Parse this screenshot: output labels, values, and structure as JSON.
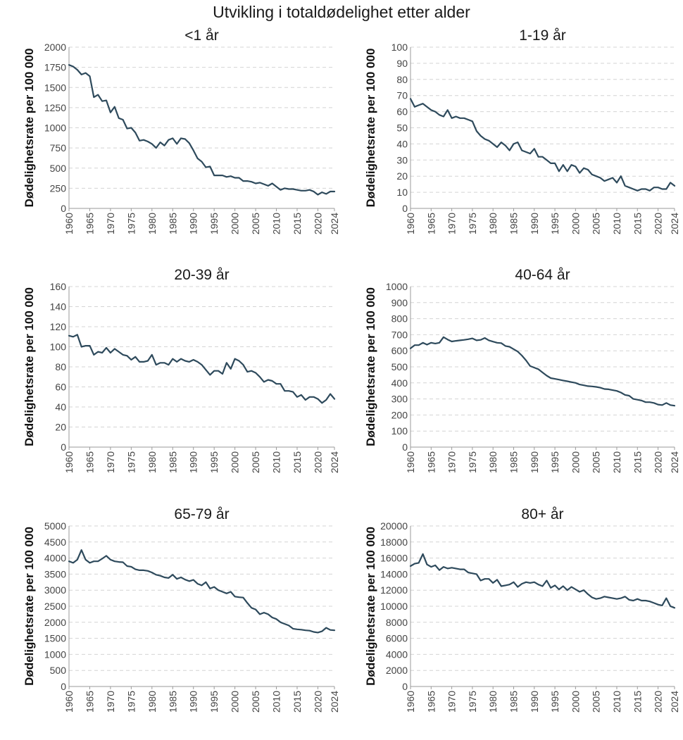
{
  "title": "Utvikling i totaldødelighet etter alder",
  "colors": {
    "line": "#2e4a5c"
  },
  "chart_data": [
    {
      "type": "line",
      "title": "<1 år",
      "xlabel": "",
      "ylabel": "Dødelighetsrate per 100 000",
      "xlim": [
        1960,
        2024
      ],
      "ylim": [
        0,
        2000
      ],
      "yticks": [
        0,
        250,
        500,
        750,
        1000,
        1250,
        1500,
        1750,
        2000
      ],
      "xticks": [
        1960,
        1965,
        1970,
        1975,
        1980,
        1985,
        1990,
        1995,
        2000,
        2005,
        2010,
        2015,
        2020,
        2024
      ],
      "grid": true,
      "x": [
        1960,
        1961,
        1962,
        1963,
        1964,
        1965,
        1966,
        1967,
        1968,
        1969,
        1970,
        1971,
        1972,
        1973,
        1974,
        1975,
        1976,
        1977,
        1978,
        1979,
        1980,
        1981,
        1982,
        1983,
        1984,
        1985,
        1986,
        1987,
        1988,
        1989,
        1990,
        1991,
        1992,
        1993,
        1994,
        1995,
        1996,
        1997,
        1998,
        1999,
        2000,
        2001,
        2002,
        2003,
        2004,
        2005,
        2006,
        2007,
        2008,
        2009,
        2010,
        2011,
        2012,
        2013,
        2014,
        2015,
        2016,
        2017,
        2018,
        2019,
        2020,
        2021,
        2022,
        2023,
        2024
      ],
      "y": [
        1780,
        1760,
        1720,
        1660,
        1680,
        1640,
        1380,
        1410,
        1330,
        1340,
        1190,
        1260,
        1120,
        1100,
        990,
        1000,
        940,
        840,
        850,
        830,
        800,
        750,
        820,
        780,
        850,
        870,
        800,
        870,
        860,
        810,
        720,
        620,
        580,
        510,
        520,
        410,
        410,
        410,
        390,
        400,
        380,
        380,
        340,
        340,
        330,
        310,
        320,
        300,
        280,
        310,
        270,
        230,
        250,
        240,
        240,
        230,
        220,
        220,
        230,
        210,
        170,
        200,
        180,
        210,
        210
      ]
    },
    {
      "type": "line",
      "title": "1-19 år",
      "xlabel": "",
      "ylabel": "Dødelighetsrate per 100 000",
      "xlim": [
        1960,
        2024
      ],
      "ylim": [
        0,
        100
      ],
      "yticks": [
        0,
        10,
        20,
        30,
        40,
        50,
        60,
        70,
        80,
        90,
        100
      ],
      "xticks": [
        1960,
        1965,
        1970,
        1975,
        1980,
        1985,
        1990,
        1995,
        2000,
        2005,
        2010,
        2015,
        2020,
        2024
      ],
      "grid": true,
      "x": [
        1960,
        1961,
        1962,
        1963,
        1964,
        1965,
        1966,
        1967,
        1968,
        1969,
        1970,
        1971,
        1972,
        1973,
        1974,
        1975,
        1976,
        1977,
        1978,
        1979,
        1980,
        1981,
        1982,
        1983,
        1984,
        1985,
        1986,
        1987,
        1988,
        1989,
        1990,
        1991,
        1992,
        1993,
        1994,
        1995,
        1996,
        1997,
        1998,
        1999,
        2000,
        2001,
        2002,
        2003,
        2004,
        2005,
        2006,
        2007,
        2008,
        2009,
        2010,
        2011,
        2012,
        2013,
        2014,
        2015,
        2016,
        2017,
        2018,
        2019,
        2020,
        2021,
        2022,
        2023,
        2024
      ],
      "y": [
        68,
        63,
        64,
        65,
        63,
        61,
        60,
        58,
        57,
        61,
        56,
        57,
        56,
        56,
        55,
        54,
        48,
        45,
        43,
        42,
        40,
        38,
        41,
        39,
        36,
        40,
        41,
        36,
        35,
        34,
        37,
        32,
        32,
        30,
        28,
        28,
        23,
        27,
        23,
        27,
        26,
        22,
        25,
        24,
        21,
        20,
        19,
        17,
        18,
        19,
        16,
        20,
        14,
        13,
        12,
        11,
        12,
        12,
        11,
        13,
        13,
        12,
        12,
        16,
        14
      ]
    },
    {
      "type": "line",
      "title": "20-39 år",
      "xlabel": "",
      "ylabel": "Dødelighetsrate per 100 000",
      "xlim": [
        1960,
        2024
      ],
      "ylim": [
        0,
        160
      ],
      "yticks": [
        0,
        20,
        40,
        60,
        80,
        100,
        120,
        140,
        160
      ],
      "xticks": [
        1960,
        1965,
        1970,
        1975,
        1980,
        1985,
        1990,
        1995,
        2000,
        2005,
        2010,
        2015,
        2020,
        2024
      ],
      "grid": true,
      "x": [
        1960,
        1961,
        1962,
        1963,
        1964,
        1965,
        1966,
        1967,
        1968,
        1969,
        1970,
        1971,
        1972,
        1973,
        1974,
        1975,
        1976,
        1977,
        1978,
        1979,
        1980,
        1981,
        1982,
        1983,
        1984,
        1985,
        1986,
        1987,
        1988,
        1989,
        1990,
        1991,
        1992,
        1993,
        1994,
        1995,
        1996,
        1997,
        1998,
        1999,
        2000,
        2001,
        2002,
        2003,
        2004,
        2005,
        2006,
        2007,
        2008,
        2009,
        2010,
        2011,
        2012,
        2013,
        2014,
        2015,
        2016,
        2017,
        2018,
        2019,
        2020,
        2021,
        2022,
        2023,
        2024
      ],
      "y": [
        111,
        110,
        112,
        100,
        101,
        101,
        92,
        95,
        94,
        99,
        94,
        98,
        95,
        92,
        91,
        87,
        90,
        85,
        85,
        86,
        92,
        82,
        84,
        84,
        82,
        88,
        85,
        88,
        86,
        85,
        87,
        85,
        82,
        77,
        72,
        76,
        76,
        73,
        84,
        78,
        88,
        86,
        82,
        75,
        76,
        74,
        70,
        65,
        67,
        66,
        63,
        63,
        56,
        56,
        55,
        50,
        52,
        47,
        50,
        50,
        48,
        44,
        47,
        53,
        48
      ]
    },
    {
      "type": "line",
      "title": "40-64 år",
      "xlabel": "",
      "ylabel": "Dødelighetsrate per 100 000",
      "xlim": [
        1960,
        2024
      ],
      "ylim": [
        0,
        1000
      ],
      "yticks": [
        0,
        100,
        200,
        300,
        400,
        500,
        600,
        700,
        800,
        900,
        1000
      ],
      "xticks": [
        1960,
        1965,
        1970,
        1975,
        1980,
        1985,
        1990,
        1995,
        2000,
        2005,
        2010,
        2015,
        2020,
        2024
      ],
      "grid": true,
      "x": [
        1960,
        1961,
        1962,
        1963,
        1964,
        1965,
        1966,
        1967,
        1968,
        1969,
        1970,
        1971,
        1972,
        1973,
        1974,
        1975,
        1976,
        1977,
        1978,
        1979,
        1980,
        1981,
        1982,
        1983,
        1984,
        1985,
        1986,
        1987,
        1988,
        1989,
        1990,
        1991,
        1992,
        1993,
        1994,
        1995,
        1996,
        1997,
        1998,
        1999,
        2000,
        2001,
        2002,
        2003,
        2004,
        2005,
        2006,
        2007,
        2008,
        2009,
        2010,
        2011,
        2012,
        2013,
        2014,
        2015,
        2016,
        2017,
        2018,
        2019,
        2020,
        2021,
        2022,
        2023,
        2024
      ],
      "y": [
        615,
        635,
        635,
        650,
        638,
        650,
        645,
        650,
        685,
        670,
        658,
        662,
        665,
        668,
        672,
        677,
        665,
        668,
        680,
        665,
        657,
        650,
        648,
        630,
        625,
        610,
        595,
        570,
        540,
        505,
        495,
        485,
        465,
        445,
        430,
        425,
        420,
        415,
        410,
        405,
        400,
        390,
        385,
        380,
        378,
        375,
        370,
        362,
        360,
        355,
        350,
        340,
        325,
        320,
        300,
        295,
        290,
        280,
        280,
        275,
        265,
        262,
        275,
        262,
        258
      ]
    },
    {
      "type": "line",
      "title": "65-79 år",
      "xlabel": "",
      "ylabel": "Dødelighetsrate per 100 000",
      "xlim": [
        1960,
        2024
      ],
      "ylim": [
        0,
        5000
      ],
      "yticks": [
        0,
        500,
        1000,
        1500,
        2000,
        2500,
        3000,
        3500,
        4000,
        4500,
        5000
      ],
      "xticks": [
        1960,
        1965,
        1970,
        1975,
        1980,
        1985,
        1990,
        1995,
        2000,
        2005,
        2010,
        2015,
        2020,
        2024
      ],
      "grid": true,
      "x": [
        1960,
        1961,
        1962,
        1963,
        1964,
        1965,
        1966,
        1967,
        1968,
        1969,
        1970,
        1971,
        1972,
        1973,
        1974,
        1975,
        1976,
        1977,
        1978,
        1979,
        1980,
        1981,
        1982,
        1983,
        1984,
        1985,
        1986,
        1987,
        1988,
        1989,
        1990,
        1991,
        1992,
        1993,
        1994,
        1995,
        1996,
        1997,
        1998,
        1999,
        2000,
        2001,
        2002,
        2003,
        2004,
        2005,
        2006,
        2007,
        2008,
        2009,
        2010,
        2011,
        2012,
        2013,
        2014,
        2015,
        2016,
        2017,
        2018,
        2019,
        2020,
        2021,
        2022,
        2023,
        2024
      ],
      "y": [
        3900,
        3850,
        3950,
        4250,
        3950,
        3850,
        3900,
        3900,
        3980,
        4070,
        3950,
        3900,
        3880,
        3870,
        3750,
        3730,
        3650,
        3620,
        3620,
        3600,
        3550,
        3480,
        3450,
        3400,
        3380,
        3480,
        3350,
        3400,
        3330,
        3280,
        3320,
        3200,
        3150,
        3250,
        3050,
        3100,
        3000,
        2950,
        2900,
        2950,
        2800,
        2780,
        2770,
        2600,
        2450,
        2400,
        2250,
        2300,
        2250,
        2150,
        2100,
        2000,
        1950,
        1900,
        1800,
        1780,
        1770,
        1750,
        1740,
        1700,
        1680,
        1720,
        1830,
        1760,
        1750
      ]
    },
    {
      "type": "line",
      "title": "80+ år",
      "xlabel": "",
      "ylabel": "Dødelighetsrate per 100 000",
      "xlim": [
        1960,
        2024
      ],
      "ylim": [
        0,
        20000
      ],
      "yticks": [
        0,
        2000,
        4000,
        6000,
        8000,
        10000,
        12000,
        14000,
        16000,
        18000,
        20000
      ],
      "xticks": [
        1960,
        1965,
        1970,
        1975,
        1980,
        1985,
        1990,
        1995,
        2000,
        2005,
        2010,
        2015,
        2020,
        2024
      ],
      "grid": true,
      "x": [
        1960,
        1961,
        1962,
        1963,
        1964,
        1965,
        1966,
        1967,
        1968,
        1969,
        1970,
        1971,
        1972,
        1973,
        1974,
        1975,
        1976,
        1977,
        1978,
        1979,
        1980,
        1981,
        1982,
        1983,
        1984,
        1985,
        1986,
        1987,
        1988,
        1989,
        1990,
        1991,
        1992,
        1993,
        1994,
        1995,
        1996,
        1997,
        1998,
        1999,
        2000,
        2001,
        2002,
        2003,
        2004,
        2005,
        2006,
        2007,
        2008,
        2009,
        2010,
        2011,
        2012,
        2013,
        2014,
        2015,
        2016,
        2017,
        2018,
        2019,
        2020,
        2021,
        2022,
        2023,
        2024
      ],
      "y": [
        15000,
        15300,
        15400,
        16500,
        15200,
        14900,
        15100,
        14500,
        14900,
        14700,
        14800,
        14700,
        14600,
        14600,
        14200,
        14100,
        14000,
        13200,
        13400,
        13400,
        12900,
        13300,
        12500,
        12600,
        12700,
        13000,
        12400,
        12800,
        13000,
        12900,
        13000,
        12700,
        12500,
        13200,
        12300,
        12600,
        12100,
        12500,
        12000,
        12400,
        12100,
        11800,
        12000,
        11500,
        11100,
        10900,
        11000,
        11200,
        11100,
        11000,
        10900,
        11000,
        11200,
        10800,
        10700,
        10900,
        10700,
        10700,
        10600,
        10400,
        10200,
        10100,
        11000,
        10000,
        9800
      ]
    }
  ]
}
